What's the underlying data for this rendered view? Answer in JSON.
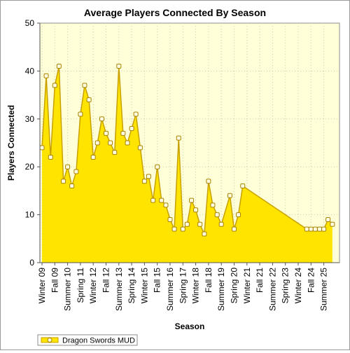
{
  "chart_data": {
    "type": "area",
    "title": "Average Players Connected By Season",
    "xlabel": "Season",
    "ylabel": "Players Connected",
    "ylim": [
      0,
      50
    ],
    "yticks": [
      0,
      10,
      20,
      30,
      40,
      50
    ],
    "grid": true,
    "legend_position": "bottom-left",
    "colors": {
      "fill": "#ffe400",
      "line": "#c8a000",
      "marker_fill": "#fffbe0",
      "marker_stroke": "#a88400",
      "plot_bg": "#ffffd8",
      "grid": "#c8c8b8"
    },
    "x_categories": [
      "Winter 09",
      "Fall 09",
      "Summer 10",
      "Spring 11",
      "Winter 12",
      "Fall 12",
      "Summer 13",
      "Spring 14",
      "Winter 15",
      "Fall 15",
      "Summer 16",
      "Spring 17",
      "Winter 18",
      "Fall 18",
      "Summer 19",
      "Spring 20",
      "Winter 21",
      "Fall 21",
      "Summer 22",
      "Spring 23",
      "Winter 24",
      "Fall 24",
      "Summer 25"
    ],
    "series": [
      {
        "name": "Dragon Swords MUD",
        "points": [
          {
            "x": 0.0,
            "y": 24
          },
          {
            "x": 0.33,
            "y": 39
          },
          {
            "x": 0.67,
            "y": 22
          },
          {
            "x": 1.0,
            "y": 37
          },
          {
            "x": 1.33,
            "y": 41
          },
          {
            "x": 1.67,
            "y": 17
          },
          {
            "x": 2.0,
            "y": 20
          },
          {
            "x": 2.33,
            "y": 16
          },
          {
            "x": 2.67,
            "y": 19
          },
          {
            "x": 3.0,
            "y": 31
          },
          {
            "x": 3.33,
            "y": 37
          },
          {
            "x": 3.67,
            "y": 34
          },
          {
            "x": 4.0,
            "y": 22
          },
          {
            "x": 4.33,
            "y": 25
          },
          {
            "x": 4.67,
            "y": 30
          },
          {
            "x": 5.0,
            "y": 27
          },
          {
            "x": 5.33,
            "y": 25
          },
          {
            "x": 5.67,
            "y": 23
          },
          {
            "x": 6.0,
            "y": 41
          },
          {
            "x": 6.33,
            "y": 27
          },
          {
            "x": 6.67,
            "y": 25
          },
          {
            "x": 7.0,
            "y": 28
          },
          {
            "x": 7.33,
            "y": 31
          },
          {
            "x": 7.67,
            "y": 24
          },
          {
            "x": 8.0,
            "y": 17
          },
          {
            "x": 8.33,
            "y": 18
          },
          {
            "x": 8.67,
            "y": 13
          },
          {
            "x": 9.0,
            "y": 20
          },
          {
            "x": 9.33,
            "y": 13
          },
          {
            "x": 9.67,
            "y": 12
          },
          {
            "x": 10.0,
            "y": 9
          },
          {
            "x": 10.33,
            "y": 7
          },
          {
            "x": 10.67,
            "y": 26
          },
          {
            "x": 11.0,
            "y": 7
          },
          {
            "x": 11.33,
            "y": 8
          },
          {
            "x": 11.67,
            "y": 13
          },
          {
            "x": 12.0,
            "y": 11
          },
          {
            "x": 12.33,
            "y": 8
          },
          {
            "x": 12.67,
            "y": 6
          },
          {
            "x": 13.0,
            "y": 17
          },
          {
            "x": 13.33,
            "y": 12
          },
          {
            "x": 13.67,
            "y": 10
          },
          {
            "x": 14.0,
            "y": 8
          },
          {
            "x": 14.67,
            "y": 14
          },
          {
            "x": 15.0,
            "y": 7
          },
          {
            "x": 15.33,
            "y": 10
          },
          {
            "x": 15.67,
            "y": 16
          },
          {
            "x": 20.67,
            "y": 7
          },
          {
            "x": 21.0,
            "y": 7
          },
          {
            "x": 21.33,
            "y": 7
          },
          {
            "x": 21.67,
            "y": 7
          },
          {
            "x": 22.0,
            "y": 7
          },
          {
            "x": 22.33,
            "y": 9
          },
          {
            "x": 22.67,
            "y": 8
          }
        ]
      }
    ]
  }
}
